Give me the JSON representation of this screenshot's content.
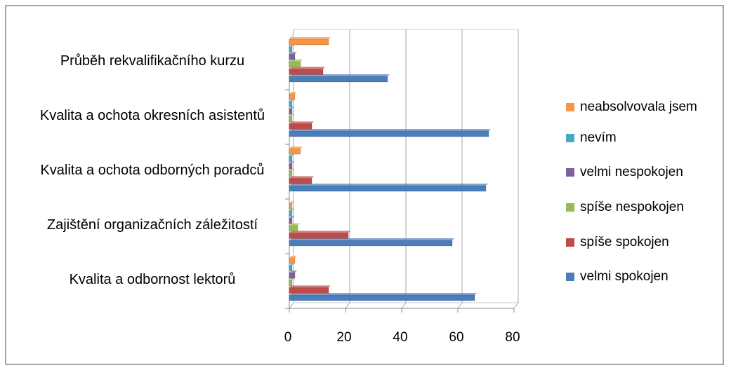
{
  "chart_data": {
    "type": "bar",
    "orientation": "horizontal",
    "categories": [
      "Kvalita a odbornost lektorů",
      "Zajištění organizačních záležitostí",
      "Kvalita a ochota odborných poradců",
      "Kvalita a ochota okresních asistentů",
      "Průběh rekvalifikačního kurzu"
    ],
    "series": [
      {
        "name": "velmi spokojen",
        "color": "#4a7ebb",
        "values": [
          66,
          58,
          70,
          71,
          35
        ]
      },
      {
        "name": "spíše spokojen",
        "color": "#be4b48",
        "values": [
          14,
          21,
          8,
          8,
          12
        ]
      },
      {
        "name": "spíše nespokojen",
        "color": "#98b954",
        "values": [
          1,
          3,
          1,
          1,
          4
        ]
      },
      {
        "name": "velmi nespokojen",
        "color": "#7d60a0",
        "values": [
          2,
          1,
          1,
          1,
          2
        ]
      },
      {
        "name": "nevím",
        "color": "#46aac5",
        "values": [
          1,
          1,
          1,
          1,
          1
        ]
      },
      {
        "name": "neabsolvovala jsem",
        "color": "#f79646",
        "values": [
          2,
          1,
          4,
          2,
          14
        ]
      }
    ],
    "xlim": [
      0,
      80
    ],
    "xticks": [
      0,
      20,
      40,
      60,
      80
    ],
    "grid": true,
    "legend": "right"
  }
}
